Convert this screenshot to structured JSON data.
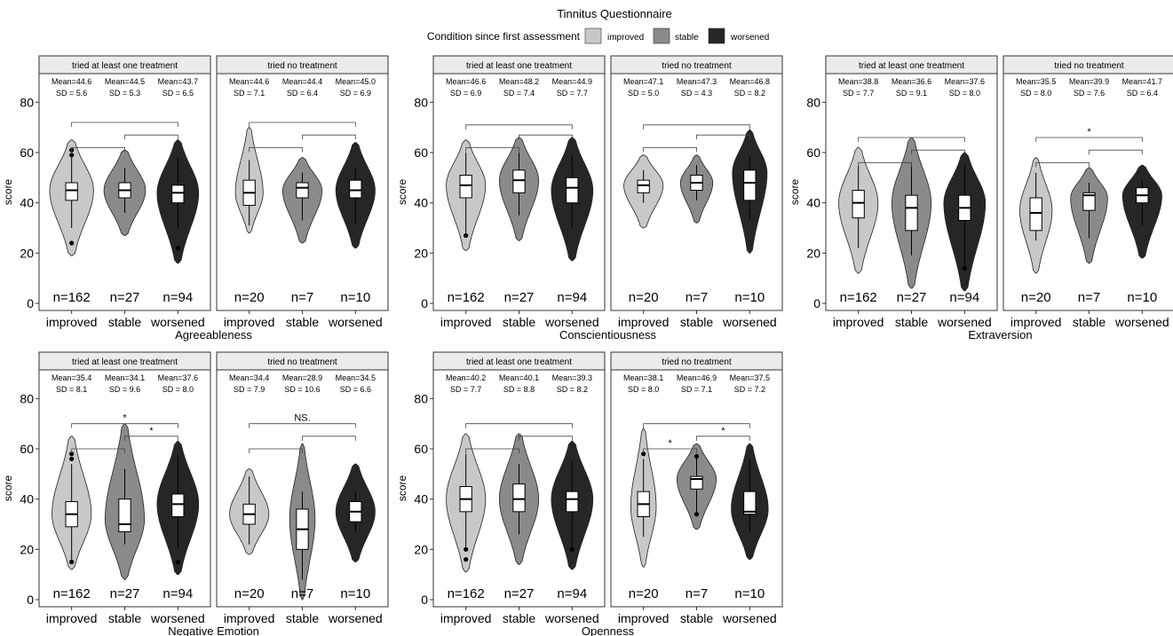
{
  "title": "Tinnitus Questionnaire",
  "legend": {
    "title": "Condition since first assessment",
    "entries": [
      {
        "label": "improved",
        "color": "#c8c8c8"
      },
      {
        "label": "stable",
        "color": "#8a8a8a"
      },
      {
        "label": "worsened",
        "color": "#262626"
      }
    ]
  },
  "colors": {
    "improved": "#c8c8c8",
    "stable": "#8a8a8a",
    "worsened": "#262626",
    "strip_fill": "#ebebeb"
  },
  "chart_data": [
    {
      "type": "violin",
      "xlabel": "Agreeableness",
      "ylabel": "score",
      "ylim": [
        0,
        80
      ],
      "yticks": [
        0,
        20,
        40,
        60,
        80
      ],
      "categories": [
        "improved",
        "stable",
        "worsened"
      ],
      "facets": [
        {
          "strip": "tried at least one treatment",
          "groups": [
            {
              "mean": "Mean=44.6",
              "sd": "SD  = 5.6",
              "n": "n=162",
              "median": 45,
              "q1": 41,
              "q3": 48,
              "wlo": 30,
              "whi": 58,
              "vmin": 19,
              "vmax": 65,
              "vpeak": 45,
              "vwidth": 0.95,
              "outliers": [
                59,
                61,
                24
              ]
            },
            {
              "mean": "Mean=44.5",
              "sd": "SD  = 5.3",
              "n": "n=27",
              "median": 45,
              "q1": 42,
              "q3": 48,
              "wlo": 36,
              "whi": 54,
              "vmin": 27,
              "vmax": 61,
              "vpeak": 45,
              "vwidth": 0.9,
              "outliers": []
            },
            {
              "mean": "Mean=43.7",
              "sd": "SD  = 6.5",
              "n": "n=94",
              "median": 44,
              "q1": 40,
              "q3": 47,
              "wlo": 30,
              "whi": 58,
              "vmin": 16,
              "vmax": 65,
              "vpeak": 44,
              "vwidth": 0.9,
              "outliers": [
                22
              ]
            }
          ],
          "brackets": [
            {
              "from": 0,
              "to": 1,
              "y": 62,
              "label": ""
            },
            {
              "from": 1,
              "to": 2,
              "y": 67,
              "label": ""
            },
            {
              "from": 0,
              "to": 2,
              "y": 72,
              "label": ""
            }
          ]
        },
        {
          "strip": "tried no treatment",
          "groups": [
            {
              "mean": "Mean=44.6",
              "sd": "SD  = 7.1",
              "n": "n=20",
              "median": 44,
              "q1": 39,
              "q3": 49,
              "wlo": 31,
              "whi": 57,
              "vmin": 28,
              "vmax": 70,
              "vpeak": 44,
              "vwidth": 0.6,
              "outliers": []
            },
            {
              "mean": "Mean=44.4",
              "sd": "SD  = 6.4",
              "n": "n=7",
              "median": 46,
              "q1": 42,
              "q3": 48,
              "wlo": 33,
              "whi": 52,
              "vmin": 24,
              "vmax": 58,
              "vpeak": 45,
              "vwidth": 0.85,
              "outliers": []
            },
            {
              "mean": "Mean=45.0",
              "sd": "SD  = 6.9",
              "n": "n=10",
              "median": 45,
              "q1": 42,
              "q3": 49,
              "wlo": 32,
              "whi": 54,
              "vmin": 22,
              "vmax": 64,
              "vpeak": 45,
              "vwidth": 0.85,
              "outliers": []
            }
          ],
          "brackets": [
            {
              "from": 0,
              "to": 1,
              "y": 62,
              "label": ""
            },
            {
              "from": 1,
              "to": 2,
              "y": 67,
              "label": ""
            },
            {
              "from": 0,
              "to": 2,
              "y": 72,
              "label": ""
            }
          ]
        }
      ]
    },
    {
      "type": "violin",
      "xlabel": "Conscientiousness",
      "ylabel": "score",
      "ylim": [
        0,
        80
      ],
      "yticks": [
        0,
        20,
        40,
        60,
        80
      ],
      "categories": [
        "improved",
        "stable",
        "worsened"
      ],
      "facets": [
        {
          "strip": "tried at least one treatment",
          "groups": [
            {
              "mean": "Mean=46.6",
              "sd": "SD  = 6.9",
              "n": "n=162",
              "median": 47,
              "q1": 42,
              "q3": 51,
              "wlo": 28,
              "whi": 60,
              "vmin": 21,
              "vmax": 65,
              "vpeak": 47,
              "vwidth": 0.85,
              "outliers": [
                27
              ]
            },
            {
              "mean": "Mean=48.2",
              "sd": "SD  = 7.4",
              "n": "n=27",
              "median": 49,
              "q1": 44,
              "q3": 53,
              "wlo": 35,
              "whi": 60,
              "vmin": 25,
              "vmax": 66,
              "vpeak": 49,
              "vwidth": 0.85,
              "outliers": []
            },
            {
              "mean": "Mean=44.9",
              "sd": "SD  = 7.7",
              "n": "n=94",
              "median": 46,
              "q1": 40,
              "q3": 50,
              "wlo": 30,
              "whi": 59,
              "vmin": 17,
              "vmax": 66,
              "vpeak": 45,
              "vwidth": 0.9,
              "outliers": []
            }
          ],
          "brackets": [
            {
              "from": 0,
              "to": 1,
              "y": 62,
              "label": ""
            },
            {
              "from": 1,
              "to": 2,
              "y": 67,
              "label": ""
            },
            {
              "from": 0,
              "to": 2,
              "y": 71,
              "label": ""
            }
          ]
        },
        {
          "strip": "tried no treatment",
          "groups": [
            {
              "mean": "Mean=47.1",
              "sd": "SD  = 5.0",
              "n": "n=20",
              "median": 47,
              "q1": 44,
              "q3": 49,
              "wlo": 40,
              "whi": 53,
              "vmin": 30,
              "vmax": 59,
              "vpeak": 47,
              "vwidth": 0.85,
              "outliers": []
            },
            {
              "mean": "Mean=47.3",
              "sd": "SD  = 4.3",
              "n": "n=7",
              "median": 48,
              "q1": 45,
              "q3": 51,
              "wlo": 41,
              "whi": 55,
              "vmin": 32,
              "vmax": 59,
              "vpeak": 48,
              "vwidth": 0.7,
              "outliers": []
            },
            {
              "mean": "Mean=46.8",
              "sd": "SD  = 8.2",
              "n": "n=10",
              "median": 48,
              "q1": 41,
              "q3": 53,
              "wlo": 34,
              "whi": 58,
              "vmin": 20,
              "vmax": 69,
              "vpeak": 52,
              "vwidth": 0.75,
              "outliers": []
            }
          ],
          "brackets": [
            {
              "from": 0,
              "to": 1,
              "y": 62,
              "label": ""
            },
            {
              "from": 1,
              "to": 2,
              "y": 67,
              "label": ""
            },
            {
              "from": 0,
              "to": 2,
              "y": 71,
              "label": ""
            }
          ]
        }
      ]
    },
    {
      "type": "violin",
      "xlabel": "Extraversion",
      "ylabel": "score",
      "ylim": [
        0,
        80
      ],
      "yticks": [
        0,
        20,
        40,
        60,
        80
      ],
      "categories": [
        "improved",
        "stable",
        "worsened"
      ],
      "facets": [
        {
          "strip": "tried at least one treatment",
          "groups": [
            {
              "mean": "Mean=38.8",
              "sd": "SD  = 7.7",
              "n": "n=162",
              "median": 40,
              "q1": 34,
              "q3": 45,
              "wlo": 22,
              "whi": 55,
              "vmin": 12,
              "vmax": 62,
              "vpeak": 40,
              "vwidth": 0.85,
              "outliers": []
            },
            {
              "mean": "Mean=36.6",
              "sd": "SD  = 9.1",
              "n": "n=27",
              "median": 38,
              "q1": 29,
              "q3": 43,
              "wlo": 19,
              "whi": 56,
              "vmin": 6,
              "vmax": 66,
              "vpeak": 40,
              "vwidth": 0.85,
              "outliers": []
            },
            {
              "mean": "Mean=37.6",
              "sd": "SD  = 8.0",
              "n": "n=94",
              "median": 38,
              "q1": 33,
              "q3": 43,
              "wlo": 14,
              "whi": 55,
              "vmin": 5,
              "vmax": 60,
              "vpeak": 40,
              "vwidth": 0.9,
              "outliers": [
                14
              ]
            }
          ],
          "brackets": [
            {
              "from": 0,
              "to": 1,
              "y": 56,
              "label": ""
            },
            {
              "from": 1,
              "to": 2,
              "y": 61,
              "label": ""
            },
            {
              "from": 0,
              "to": 2,
              "y": 66,
              "label": ""
            }
          ]
        },
        {
          "strip": "tried no treatment",
          "groups": [
            {
              "mean": "Mean=35.5",
              "sd": "SD  = 8.0",
              "n": "n=20",
              "median": 36,
              "q1": 29,
              "q3": 42,
              "wlo": 25,
              "whi": 52,
              "vmin": 12,
              "vmax": 58,
              "vpeak": 37,
              "vwidth": 0.7,
              "outliers": []
            },
            {
              "mean": "Mean=39.9",
              "sd": "SD  = 7.6",
              "n": "n=7",
              "median": 43,
              "q1": 37,
              "q3": 44,
              "wlo": 26,
              "whi": 48,
              "vmin": 16,
              "vmax": 54,
              "vpeak": 42,
              "vwidth": 0.8,
              "outliers": []
            },
            {
              "mean": "Mean=41.7",
              "sd": "SD  = 6.4",
              "n": "n=10",
              "median": 43,
              "q1": 40,
              "q3": 46,
              "wlo": 31,
              "whi": 49,
              "vmin": 18,
              "vmax": 55,
              "vpeak": 43,
              "vwidth": 0.85,
              "outliers": []
            }
          ],
          "brackets": [
            {
              "from": 0,
              "to": 1,
              "y": 56,
              "label": ""
            },
            {
              "from": 1,
              "to": 2,
              "y": 61,
              "label": ""
            },
            {
              "from": 0,
              "to": 2,
              "y": 66,
              "label": "*"
            }
          ]
        }
      ]
    },
    {
      "type": "violin",
      "xlabel": "Negative Emotion",
      "ylabel": "score",
      "ylim": [
        0,
        80
      ],
      "yticks": [
        0,
        20,
        40,
        60,
        80
      ],
      "categories": [
        "improved",
        "stable",
        "worsened"
      ],
      "facets": [
        {
          "strip": "tried at least one treatment",
          "groups": [
            {
              "mean": "Mean=35.4",
              "sd": "SD  = 8.1",
              "n": "n=162",
              "median": 34,
              "q1": 29,
              "q3": 39,
              "wlo": 16,
              "whi": 54,
              "vmin": 12,
              "vmax": 65,
              "vpeak": 34,
              "vwidth": 0.85,
              "outliers": [
                58,
                56,
                15
              ]
            },
            {
              "mean": "Mean=34.1",
              "sd": "SD  = 9.6",
              "n": "n=27",
              "median": 30,
              "q1": 27,
              "q3": 40,
              "wlo": 22,
              "whi": 52,
              "vmin": 8,
              "vmax": 70,
              "vpeak": 32,
              "vwidth": 0.85,
              "outliers": []
            },
            {
              "mean": "Mean=37.6",
              "sd": "SD  = 8.0",
              "n": "n=94",
              "median": 38,
              "q1": 33,
              "q3": 42,
              "wlo": 20,
              "whi": 57,
              "vmin": 10,
              "vmax": 63,
              "vpeak": 38,
              "vwidth": 0.9,
              "outliers": [
                15
              ]
            }
          ],
          "brackets": [
            {
              "from": 0,
              "to": 1,
              "y": 60,
              "label": ""
            },
            {
              "from": 1,
              "to": 2,
              "y": 65,
              "label": "*"
            },
            {
              "from": 0,
              "to": 2,
              "y": 70,
              "label": "*"
            }
          ]
        },
        {
          "strip": "tried no treatment",
          "groups": [
            {
              "mean": "Mean=34.4",
              "sd": "SD  = 7.9",
              "n": "n=20",
              "median": 34,
              "q1": 30,
              "q3": 38,
              "wlo": 22,
              "whi": 49,
              "vmin": 18,
              "vmax": 52,
              "vpeak": 34,
              "vwidth": 0.85,
              "outliers": []
            },
            {
              "mean": "Mean=28.9",
              "sd": "SD  = 10.6",
              "n": "n=7",
              "median": 28,
              "q1": 20,
              "q3": 36,
              "wlo": 8,
              "whi": 43,
              "vmin": 0,
              "vmax": 62,
              "vpeak": 32,
              "vwidth": 0.55,
              "outliers": []
            },
            {
              "mean": "Mean=34.5",
              "sd": "SD  = 6.6",
              "n": "n=10",
              "median": 35,
              "q1": 31,
              "q3": 39,
              "wlo": 27,
              "whi": 43,
              "vmin": 15,
              "vmax": 54,
              "vpeak": 35,
              "vwidth": 0.85,
              "outliers": []
            }
          ],
          "brackets": [
            {
              "from": 0,
              "to": 1,
              "y": 60,
              "label": ""
            },
            {
              "from": 1,
              "to": 2,
              "y": 65,
              "label": ""
            },
            {
              "from": 0,
              "to": 2,
              "y": 70,
              "label": "NS."
            }
          ]
        }
      ]
    },
    {
      "type": "violin",
      "xlabel": "Openness",
      "ylabel": "score",
      "ylim": [
        0,
        80
      ],
      "yticks": [
        0,
        20,
        40,
        60,
        80
      ],
      "categories": [
        "improved",
        "stable",
        "worsened"
      ],
      "facets": [
        {
          "strip": "tried at least one treatment",
          "groups": [
            {
              "mean": "Mean=40.2",
              "sd": "SD  = 7.7",
              "n": "n=162",
              "median": 40,
              "q1": 35,
              "q3": 45,
              "wlo": 21,
              "whi": 58,
              "vmin": 11,
              "vmax": 66,
              "vpeak": 40,
              "vwidth": 0.85,
              "outliers": [
                20,
                16
              ]
            },
            {
              "mean": "Mean=40.1",
              "sd": "SD  = 8.8",
              "n": "n=27",
              "median": 40,
              "q1": 35,
              "q3": 46,
              "wlo": 26,
              "whi": 54,
              "vmin": 14,
              "vmax": 66,
              "vpeak": 40,
              "vwidth": 0.85,
              "outliers": []
            },
            {
              "mean": "Mean=39.3",
              "sd": "SD  = 8.2",
              "n": "n=94",
              "median": 40,
              "q1": 35,
              "q3": 43,
              "wlo": 21,
              "whi": 55,
              "vmin": 12,
              "vmax": 63,
              "vpeak": 40,
              "vwidth": 0.9,
              "outliers": [
                20
              ]
            }
          ],
          "brackets": [
            {
              "from": 0,
              "to": 1,
              "y": 60,
              "label": ""
            },
            {
              "from": 1,
              "to": 2,
              "y": 65,
              "label": ""
            },
            {
              "from": 0,
              "to": 2,
              "y": 70,
              "label": ""
            }
          ]
        },
        {
          "strip": "tried no treatment",
          "groups": [
            {
              "mean": "Mean=38.1",
              "sd": "SD  = 8.0",
              "n": "n=20",
              "median": 38,
              "q1": 33,
              "q3": 43,
              "wlo": 25,
              "whi": 56,
              "vmin": 13,
              "vmax": 68,
              "vpeak": 37,
              "vwidth": 0.55,
              "outliers": [
                58
              ]
            },
            {
              "mean": "Mean=46.9",
              "sd": "SD  = 7.1",
              "n": "n=7",
              "median": 48,
              "q1": 44,
              "q3": 49,
              "wlo": 34,
              "whi": 57,
              "vmin": 28,
              "vmax": 62,
              "vpeak": 48,
              "vwidth": 0.85,
              "outliers": [
                57,
                34
              ]
            },
            {
              "mean": "Mean=37.5",
              "sd": "SD  = 7.2",
              "n": "n=10",
              "median": 35,
              "q1": 34,
              "q3": 43,
              "wlo": 27,
              "whi": 56,
              "vmin": 16,
              "vmax": 62,
              "vpeak": 36,
              "vwidth": 0.8,
              "outliers": []
            }
          ],
          "brackets": [
            {
              "from": 0,
              "to": 1,
              "y": 60,
              "label": "*"
            },
            {
              "from": 1,
              "to": 2,
              "y": 65,
              "label": "*"
            },
            {
              "from": 0,
              "to": 2,
              "y": 70,
              "label": ""
            }
          ]
        }
      ]
    }
  ]
}
